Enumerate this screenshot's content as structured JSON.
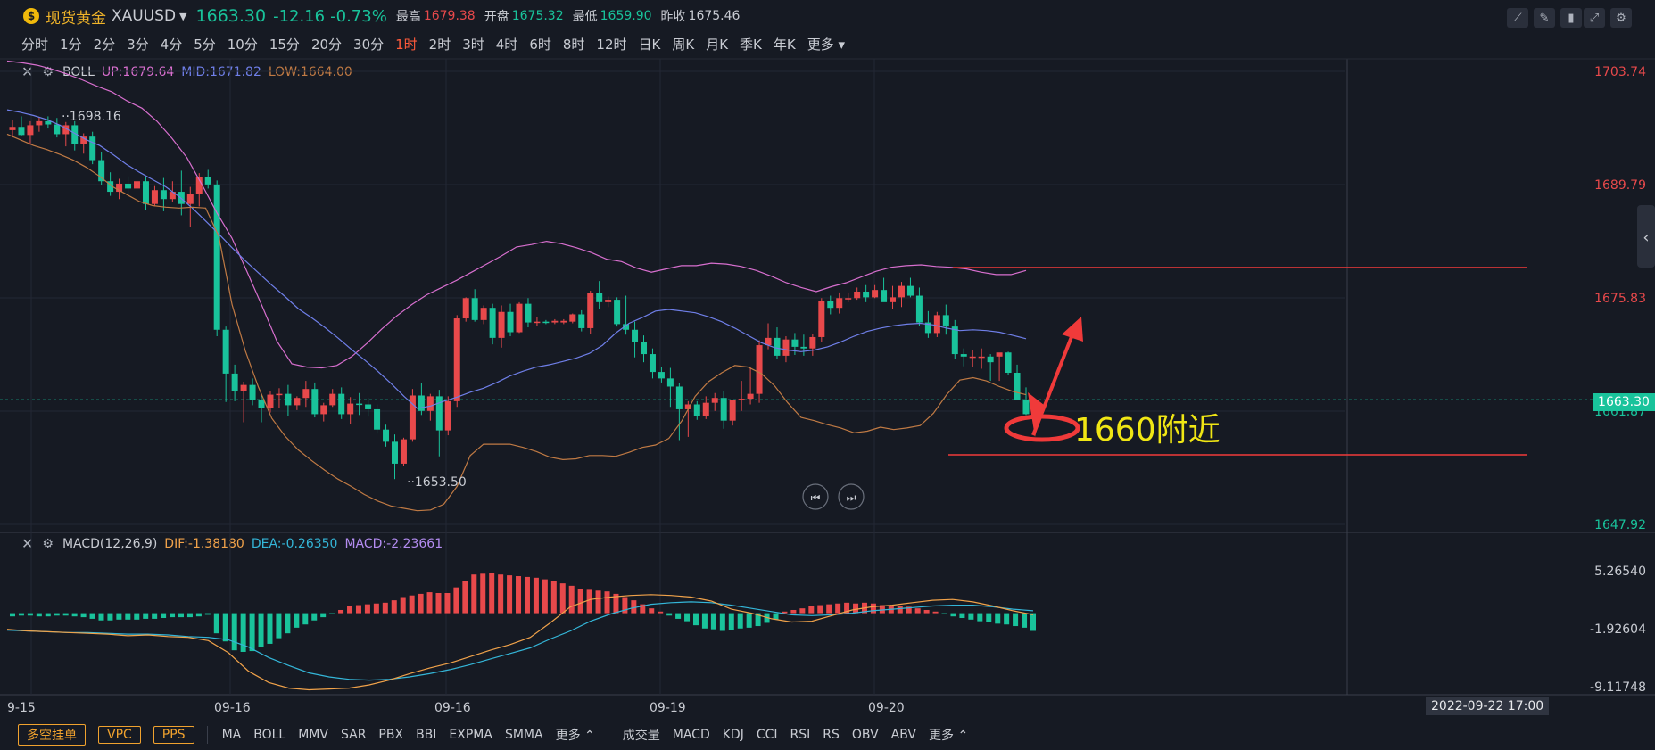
{
  "header": {
    "name": "现货黄金",
    "symbol": "XAUUSD",
    "price": "1663.30",
    "change": "-12.16",
    "change_pct": "-0.73%",
    "high_label": "最高",
    "high": "1679.38",
    "open_label": "开盘",
    "open": "1675.32",
    "low_label": "最低",
    "low": "1659.90",
    "prev_label": "昨收",
    "prev": "1675.46"
  },
  "periods": [
    "分时",
    "1分",
    "2分",
    "3分",
    "4分",
    "5分",
    "10分",
    "15分",
    "20分",
    "30分",
    "1时",
    "2时",
    "3时",
    "4时",
    "6时",
    "8时",
    "12时",
    "日K",
    "周K",
    "月K",
    "季K",
    "年K",
    "更多"
  ],
  "active_period": "1时",
  "boll_legend": {
    "name": "BOLL",
    "up": "UP:1679.64",
    "mid": "MID:1671.82",
    "low": "LOW:1664.00"
  },
  "macd_legend": {
    "name": "MACD(12,26,9)",
    "dif": "DIF:-1.38180",
    "dea": "DEA:-0.26350",
    "macd": "MACD:-2.23661"
  },
  "price_axis": [
    "1703.74",
    "1689.79",
    "1675.83",
    "1661.87",
    "1647.92"
  ],
  "current_price_tag": "1663.30",
  "macd_axis": [
    "5.26540",
    "-1.92604",
    "-9.11748"
  ],
  "x_axis": [
    "9-15",
    "09-16",
    "09-16",
    "09-19",
    "09-20"
  ],
  "crosshair_date": "2022-09-22 17:00",
  "annotation_text": "1660附近",
  "high_marker": "1698.16",
  "low_marker": "1653.50",
  "bottom_toolbar": {
    "buttons": [
      "多空挂单",
      "VPC",
      "PPS"
    ],
    "main_indicators": [
      "MA",
      "BOLL",
      "MMV",
      "SAR",
      "PBX",
      "BBI",
      "EXPMA",
      "SMMA",
      "更多"
    ],
    "sub_indicators": [
      "成交量",
      "MACD",
      "KDJ",
      "CCI",
      "RSI",
      "RS",
      "OBV",
      "ABV",
      "更多"
    ]
  },
  "colors": {
    "up": "#e8494b",
    "down": "#19c39b",
    "boll_up": "#d86fcf",
    "boll_mid": "#6f7fe8",
    "boll_low": "#c07a44",
    "dif": "#f0a24a",
    "dea": "#34b6d8",
    "annotation": "#f0e614",
    "drawing": "#f03a3a"
  },
  "chart_data": {
    "type": "candlestick",
    "ylim": [
      1647.92,
      1703.74
    ],
    "candles": [
      [
        1696.5,
        1697.8,
        1695.6,
        1696.9
      ],
      [
        1696.9,
        1698.2,
        1695.8,
        1695.9
      ],
      [
        1695.9,
        1697.6,
        1694.7,
        1697.1
      ],
      [
        1697.1,
        1698.1,
        1696.3,
        1697.6
      ],
      [
        1697.6,
        1698.2,
        1696.7,
        1697.2
      ],
      [
        1697.2,
        1698.0,
        1695.6,
        1696.0
      ],
      [
        1696.0,
        1697.5,
        1694.5,
        1697.1
      ],
      [
        1697.1,
        1697.6,
        1694.0,
        1694.8
      ],
      [
        1694.8,
        1696.1,
        1693.6,
        1695.7
      ],
      [
        1695.7,
        1696.3,
        1692.3,
        1692.8
      ],
      [
        1692.8,
        1693.8,
        1689.7,
        1690.2
      ],
      [
        1690.2,
        1691.3,
        1688.4,
        1688.9
      ],
      [
        1688.9,
        1690.5,
        1688.0,
        1689.9
      ],
      [
        1689.9,
        1690.8,
        1688.6,
        1689.3
      ],
      [
        1689.3,
        1690.7,
        1688.2,
        1690.2
      ],
      [
        1690.2,
        1690.8,
        1686.7,
        1687.4
      ],
      [
        1687.4,
        1689.6,
        1687.1,
        1689.1
      ],
      [
        1689.1,
        1690.6,
        1686.5,
        1688.0
      ],
      [
        1688.0,
        1690.2,
        1687.6,
        1688.9
      ],
      [
        1688.9,
        1691.5,
        1686.0,
        1687.4
      ],
      [
        1687.4,
        1689.5,
        1684.6,
        1688.6
      ],
      [
        1688.6,
        1691.2,
        1687.1,
        1690.7
      ],
      [
        1690.7,
        1691.6,
        1689.3,
        1689.8
      ],
      [
        1689.8,
        1690.3,
        1671.1,
        1671.9
      ],
      [
        1671.9,
        1672.3,
        1663.0,
        1666.5
      ],
      [
        1666.5,
        1667.6,
        1663.1,
        1664.3
      ],
      [
        1664.3,
        1665.5,
        1660.5,
        1665.1
      ],
      [
        1665.1,
        1665.9,
        1662.6,
        1663.2
      ],
      [
        1663.2,
        1664.0,
        1660.5,
        1662.3
      ],
      [
        1662.3,
        1664.3,
        1661.7,
        1663.9
      ],
      [
        1663.9,
        1664.7,
        1662.3,
        1664.0
      ],
      [
        1664.0,
        1665.1,
        1661.3,
        1662.6
      ],
      [
        1662.6,
        1663.7,
        1662.0,
        1663.5
      ],
      [
        1663.5,
        1665.6,
        1662.4,
        1664.6
      ],
      [
        1664.6,
        1665.4,
        1661.1,
        1661.5
      ],
      [
        1661.5,
        1662.9,
        1660.6,
        1662.6
      ],
      [
        1662.6,
        1664.6,
        1662.4,
        1664.0
      ],
      [
        1664.0,
        1664.8,
        1660.9,
        1661.5
      ],
      [
        1661.5,
        1663.6,
        1660.3,
        1662.8
      ],
      [
        1662.8,
        1664.1,
        1661.4,
        1662.7
      ],
      [
        1662.7,
        1663.5,
        1661.2,
        1662.1
      ],
      [
        1662.1,
        1662.7,
        1659.1,
        1659.6
      ],
      [
        1659.6,
        1660.2,
        1657.5,
        1658.1
      ],
      [
        1658.1,
        1659.0,
        1653.5,
        1655.4
      ],
      [
        1655.4,
        1658.6,
        1655.1,
        1658.4
      ],
      [
        1658.4,
        1664.6,
        1658.1,
        1663.8
      ],
      [
        1663.8,
        1665.3,
        1661.4,
        1661.9
      ],
      [
        1661.9,
        1664.0,
        1660.7,
        1663.7
      ],
      [
        1663.7,
        1664.5,
        1656.3,
        1659.5
      ],
      [
        1659.5,
        1663.7,
        1658.9,
        1663.1
      ],
      [
        1663.1,
        1673.7,
        1662.4,
        1673.3
      ],
      [
        1673.3,
        1675.9,
        1672.9,
        1675.8
      ],
      [
        1675.8,
        1676.9,
        1672.9,
        1673.1
      ],
      [
        1673.1,
        1674.9,
        1672.6,
        1674.6
      ],
      [
        1674.6,
        1675.1,
        1670.1,
        1670.9
      ],
      [
        1670.9,
        1674.9,
        1669.7,
        1674.1
      ],
      [
        1674.1,
        1675.1,
        1671.1,
        1671.6
      ],
      [
        1671.6,
        1675.3,
        1671.5,
        1675.1
      ],
      [
        1675.1,
        1675.8,
        1672.2,
        1672.8
      ],
      [
        1672.8,
        1673.5,
        1672.4,
        1672.9
      ],
      [
        1672.9,
        1673.1,
        1672.6,
        1672.8
      ],
      [
        1672.8,
        1673.2,
        1672.6,
        1673.0
      ],
      [
        1672.8,
        1673.2,
        1672.6,
        1673.0
      ],
      [
        1672.9,
        1673.9,
        1672.7,
        1673.8
      ],
      [
        1673.8,
        1674.3,
        1671.7,
        1672.1
      ],
      [
        1672.1,
        1676.7,
        1671.4,
        1676.4
      ],
      [
        1676.4,
        1677.9,
        1674.5,
        1675.3
      ],
      [
        1675.3,
        1676.0,
        1674.7,
        1675.6
      ],
      [
        1675.6,
        1675.9,
        1672.3,
        1672.6
      ],
      [
        1672.6,
        1676.1,
        1671.3,
        1671.9
      ],
      [
        1671.9,
        1672.9,
        1668.5,
        1670.4
      ],
      [
        1670.4,
        1671.2,
        1667.9,
        1668.9
      ],
      [
        1668.9,
        1669.6,
        1665.9,
        1666.7
      ],
      [
        1666.7,
        1667.3,
        1665.4,
        1665.9
      ],
      [
        1665.9,
        1667.2,
        1662.4,
        1664.9
      ],
      [
        1664.9,
        1665.3,
        1658.3,
        1662.1
      ],
      [
        1662.1,
        1663.1,
        1658.7,
        1662.7
      ],
      [
        1662.7,
        1663.1,
        1660.8,
        1661.3
      ],
      [
        1661.3,
        1663.7,
        1660.9,
        1662.9
      ],
      [
        1662.9,
        1664.1,
        1661.9,
        1663.5
      ],
      [
        1663.5,
        1664.3,
        1659.7,
        1660.7
      ],
      [
        1660.7,
        1663.3,
        1660.1,
        1663.2
      ],
      [
        1663.2,
        1665.6,
        1661.9,
        1663.4
      ],
      [
        1663.4,
        1667.3,
        1662.7,
        1664.0
      ],
      [
        1664.0,
        1670.6,
        1662.9,
        1670.0
      ],
      [
        1670.0,
        1672.7,
        1669.5,
        1670.9
      ],
      [
        1670.9,
        1672.2,
        1668.3,
        1668.7
      ],
      [
        1668.7,
        1671.1,
        1667.9,
        1670.7
      ],
      [
        1670.7,
        1671.5,
        1668.8,
        1669.8
      ],
      [
        1669.8,
        1671.3,
        1668.7,
        1669.6
      ],
      [
        1669.6,
        1671.4,
        1668.7,
        1671.0
      ],
      [
        1671.0,
        1675.8,
        1670.4,
        1675.5
      ],
      [
        1675.5,
        1676.1,
        1673.8,
        1674.6
      ],
      [
        1674.6,
        1676.5,
        1673.9,
        1675.8
      ],
      [
        1675.8,
        1676.5,
        1675.3,
        1675.8
      ],
      [
        1675.8,
        1677.1,
        1675.6,
        1676.6
      ],
      [
        1676.6,
        1677.4,
        1675.3,
        1675.9
      ],
      [
        1675.9,
        1677.4,
        1675.8,
        1676.8
      ],
      [
        1676.8,
        1678.3,
        1675.5,
        1675.3
      ],
      [
        1675.3,
        1677.3,
        1674.4,
        1675.9
      ],
      [
        1675.9,
        1677.8,
        1674.7,
        1677.3
      ],
      [
        1677.3,
        1678.3,
        1675.9,
        1676.1
      ],
      [
        1676.1,
        1677.1,
        1672.4,
        1672.8
      ],
      [
        1672.8,
        1674.2,
        1670.9,
        1671.5
      ],
      [
        1671.5,
        1674.1,
        1671.0,
        1673.7
      ],
      [
        1673.7,
        1675.0,
        1671.3,
        1672.3
      ],
      [
        1672.3,
        1673.1,
        1668.3,
        1668.9
      ],
      [
        1668.9,
        1669.6,
        1667.4,
        1668.6
      ],
      [
        1668.6,
        1669.4,
        1667.3,
        1668.6
      ],
      [
        1668.6,
        1669.6,
        1667.1,
        1668.6
      ],
      [
        1668.6,
        1668.9,
        1665.6,
        1667.9
      ],
      [
        1668.6,
        1668.9,
        1665.6,
        1669.1
      ],
      [
        1669.1,
        1669.2,
        1666.3,
        1666.6
      ],
      [
        1666.6,
        1667.6,
        1663.3,
        1663.3
      ],
      [
        1663.3,
        1664.8,
        1661.4,
        1661.5
      ]
    ],
    "boll_up": [
      1705,
      1704.8,
      1704.5,
      1704.0,
      1703.4,
      1702.7,
      1701.9,
      1701.2,
      1700.1,
      1699.2,
      1697.6,
      1695.5,
      1693.1,
      1689.8,
      1686.3,
      1683.2,
      1679.1,
      1674.9,
      1670.5,
      1667.7,
      1667.3,
      1667.2,
      1667.5,
      1668.6,
      1670.2,
      1672.0,
      1673.6,
      1675.0,
      1676.2,
      1677.1,
      1678.0,
      1679.0,
      1680.0,
      1681.0,
      1682.1,
      1682.4,
      1682.8,
      1682.5,
      1682.0,
      1681.4,
      1680.6,
      1680.3,
      1679.5,
      1679.0,
      1679.4,
      1679.8,
      1679.8,
      1680.1,
      1680.0,
      1679.7,
      1679.2,
      1678.5,
      1677.7,
      1677.1,
      1676.6,
      1677.2,
      1677.7,
      1678.4,
      1679.1,
      1679.6,
      1679.8,
      1679.9,
      1679.7,
      1679.6,
      1679.4,
      1679.0,
      1678.7,
      1678.7,
      1679.2
    ],
    "boll_mid": [
      1699,
      1698.7,
      1698.3,
      1697.8,
      1697.1,
      1696.2,
      1695.3,
      1694.6,
      1693.5,
      1692.3,
      1691.3,
      1690.4,
      1689.5,
      1688.3,
      1686.9,
      1685.3,
      1683.7,
      1682.0,
      1680.4,
      1678.9,
      1677.4,
      1676.0,
      1674.5,
      1673.4,
      1672.2,
      1670.9,
      1669.5,
      1668.2,
      1666.8,
      1665.3,
      1663.7,
      1662.2,
      1662.5,
      1663.1,
      1663.6,
      1664.2,
      1664.7,
      1665.4,
      1666.2,
      1666.8,
      1667.3,
      1667.6,
      1668.0,
      1668.4,
      1669.0,
      1670.0,
      1671.5,
      1672.7,
      1673.4,
      1674.2,
      1674.4,
      1674.2,
      1674.0,
      1673.5,
      1672.9,
      1672.1,
      1671.2,
      1670.3,
      1669.7,
      1669.4,
      1669.2,
      1669.4,
      1669.8,
      1670.4,
      1671.1,
      1671.7,
      1672.1,
      1672.4,
      1672.6,
      1672.7,
      1672.5,
      1672.1,
      1671.8,
      1671.9,
      1671.8,
      1671.6,
      1671.2,
      1670.8
    ],
    "boll_low": [
      1696,
      1695.3,
      1694.6,
      1694.1,
      1693.5,
      1692.8,
      1691.9,
      1690.8,
      1689.5,
      1688.6,
      1687.7,
      1687.2,
      1687.0,
      1686.9,
      1687.0,
      1686.9,
      1683.4,
      1675.0,
      1669.3,
      1664.8,
      1661.0,
      1658.8,
      1657.1,
      1655.8,
      1654.6,
      1653.5,
      1652.6,
      1651.6,
      1650.8,
      1650.2,
      1649.9,
      1649.6,
      1649.7,
      1650.4,
      1652.6,
      1656.4,
      1657.8,
      1657.8,
      1657.8,
      1657.4,
      1656.9,
      1656.2,
      1655.9,
      1656.0,
      1656.4,
      1656.4,
      1656.3,
      1656.8,
      1657.4,
      1657.7,
      1658.5,
      1660.7,
      1663.7,
      1665.5,
      1666.6,
      1667.5,
      1667.3,
      1666.5,
      1665.0,
      1662.9,
      1661.1,
      1660.7,
      1660.2,
      1659.8,
      1659.2,
      1659.4,
      1659.9,
      1659.6,
      1659.8,
      1660.1,
      1661.6,
      1663.9,
      1665.7,
      1666.0,
      1665.6,
      1664.9,
      1664.3,
      1663.9
    ]
  }
}
